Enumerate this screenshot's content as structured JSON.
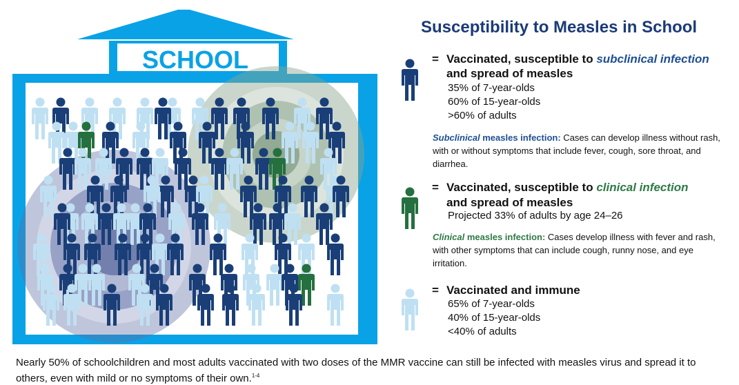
{
  "title": "Susceptibility to Measles in School",
  "school_sign": "SCHOOL",
  "colors": {
    "school_blue": "#0aa2e6",
    "dark_figure": "#1a3f78",
    "green_figure": "#24703e",
    "light_figure": "#bfe0f2",
    "blue_cluster": "#5e6ea5",
    "green_cluster": "#8aa58c"
  },
  "legend": [
    {
      "icon": "person-dark-blue-icon",
      "eq": "=",
      "line1_prefix": "Vaccinated, susceptible to ",
      "line1_em": "subclinical infection",
      "line2": "and spread of measles",
      "stats": [
        "35% of 7-year-olds",
        "60% of 15-year-olds",
        ">60% of adults"
      ],
      "def_term": "Subclinical",
      "def_label": " measles infection:",
      "def_text": " Cases can develop illness without rash, with or without symptoms that include fever, cough, sore throat, and diarrhea."
    },
    {
      "icon": "person-green-icon",
      "eq": "=",
      "line1_prefix": "Vaccinated, susceptible to ",
      "line1_em": "clinical infection",
      "line2": "and spread of measles",
      "stats": [
        "Projected 33% of adults by age 24–26"
      ],
      "def_term": "Clinical",
      "def_label": " measles infection:",
      "def_text": " Cases develop illness with fever and rash, with other symptoms that can include cough, runny nose, and eye irritation."
    },
    {
      "icon": "person-light-blue-icon",
      "eq": "=",
      "line1": "Vaccinated and immune",
      "stats": [
        "65% of 7-year-olds",
        "40% of 15-year-olds",
        "<40% of adults"
      ]
    }
  ],
  "footer": "Nearly 50% of schoolchildren and most adults vaccinated with two doses of the MMR vaccine can still be infected with measles virus and spread it to others, even with mild or no symptoms of their own.",
  "footer_ref": "1-4"
}
